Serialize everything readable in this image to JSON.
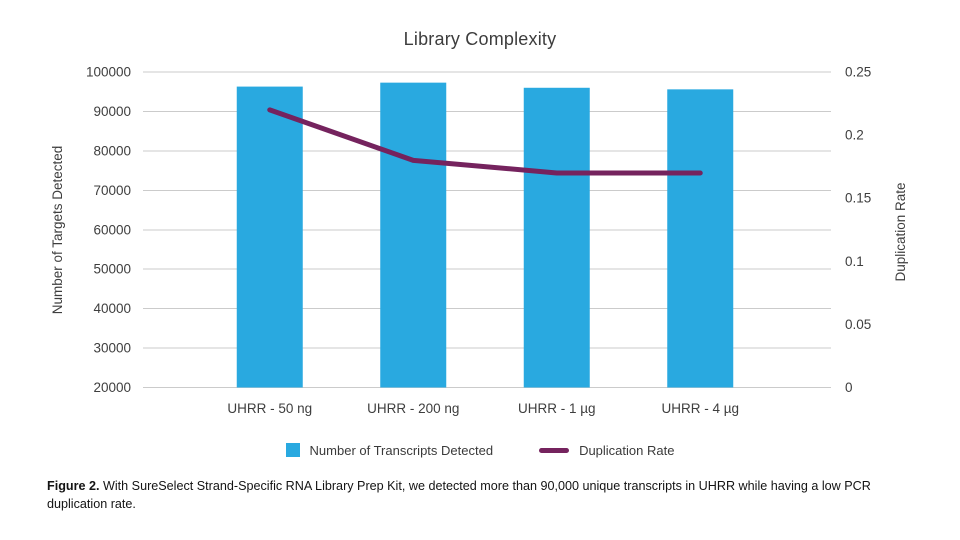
{
  "chart_data": {
    "type": "bar",
    "title": "Library Complexity",
    "categories": [
      "UHRR - 50 ng",
      "UHRR - 200 ng",
      "UHRR - 1 µg",
      "UHRR - 4 µg"
    ],
    "series": [
      {
        "name": "Number of Transcripts Detected",
        "type": "bar",
        "axis": "left",
        "color": "#29a9e0",
        "values": [
          96300,
          97300,
          96000,
          95600
        ]
      },
      {
        "name": "Duplication Rate",
        "type": "line",
        "axis": "right",
        "color": "#75235e",
        "values": [
          0.22,
          0.18,
          0.17,
          0.17
        ]
      }
    ],
    "left_axis": {
      "label": "Number of Targets Detected",
      "min": 20000,
      "max": 100000,
      "step": 10000,
      "ticks": [
        "100000",
        "90000",
        "80000",
        "70000",
        "60000",
        "50000",
        "40000",
        "30000",
        "20000"
      ]
    },
    "right_axis": {
      "label": "Duplication Rate",
      "min": 0,
      "max": 0.25,
      "step": 0.05,
      "ticks": [
        "0.25",
        "0.2",
        "0.15",
        "0.1",
        "0.05",
        "0"
      ]
    },
    "grid": true,
    "legend_position": "bottom"
  },
  "legend": {
    "items": [
      {
        "label": "Number of Transcripts Detected",
        "swatch": "square",
        "color": "#29a9e0"
      },
      {
        "label": "Duplication Rate",
        "swatch": "line",
        "color": "#75235e"
      }
    ]
  },
  "caption": {
    "prefix": "Figure 2.",
    "text": " With SureSelect Strand-Specific RNA Library Prep Kit, we detected more than 90,000 unique transcripts in UHRR while having a low PCR duplication rate."
  },
  "colors": {
    "bar": "#29a9e0",
    "line": "#75235e",
    "grid": "#cbcbcb",
    "text": "#3e3e3e"
  }
}
